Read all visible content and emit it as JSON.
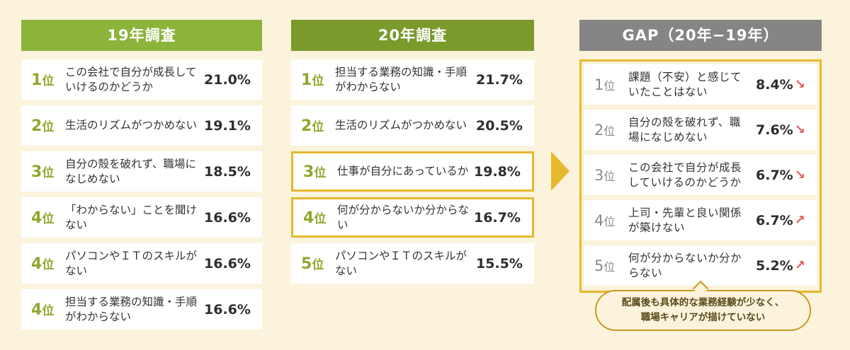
{
  "columns": {
    "y19": {
      "title": "19年調査",
      "items": [
        {
          "rank": "1",
          "suffix": "位",
          "text": "この会社で自分が成長していけるのかどうか",
          "value": "21.0%"
        },
        {
          "rank": "2",
          "suffix": "位",
          "text": "生活のリズムがつかめない",
          "value": "19.1%"
        },
        {
          "rank": "3",
          "suffix": "位",
          "text": "自分の殻を破れず、職場になじめない",
          "value": "18.5%"
        },
        {
          "rank": "4",
          "suffix": "位",
          "text": "「わからない」ことを聞けない",
          "value": "16.6%"
        },
        {
          "rank": "4",
          "suffix": "位",
          "text": "パソコンやＩＴのスキルがない",
          "value": "16.6%"
        },
        {
          "rank": "4",
          "suffix": "位",
          "text": "担当する業務の知識・手順がわからない",
          "value": "16.6%"
        }
      ]
    },
    "y20": {
      "title": "20年調査",
      "items": [
        {
          "rank": "1",
          "suffix": "位",
          "text": "担当する業務の知識・手順がわからない",
          "value": "21.7%"
        },
        {
          "rank": "2",
          "suffix": "位",
          "text": "生活のリズムがつかめない",
          "value": "20.5%"
        },
        {
          "rank": "3",
          "suffix": "位",
          "text": "仕事が自分にあっているか",
          "value": "19.8%"
        },
        {
          "rank": "4",
          "suffix": "位",
          "text": "何が分からないか分からない",
          "value": "16.7%"
        },
        {
          "rank": "5",
          "suffix": "位",
          "text": "パソコンやＩＴのスキルがない",
          "value": "15.5%"
        }
      ]
    },
    "gap": {
      "title": "GAP（20年−19年）",
      "items": [
        {
          "rank": "1",
          "suffix": "位",
          "text": "課題（不安）と感じていたことはない",
          "value": "8.4%",
          "arrow": "↘"
        },
        {
          "rank": "2",
          "suffix": "位",
          "text": "自分の殻を破れず、職場になじめない",
          "value": "7.6%",
          "arrow": "↘"
        },
        {
          "rank": "3",
          "suffix": "位",
          "text": "この会社で自分が成長していけるのかどうか",
          "value": "6.7%",
          "arrow": "↘"
        },
        {
          "rank": "4",
          "suffix": "位",
          "text": "上司・先輩と良い関係が築けない",
          "value": "6.7%",
          "arrow": "↗"
        },
        {
          "rank": "5",
          "suffix": "位",
          "text": "何が分からないか分からない",
          "value": "5.2%",
          "arrow": "↗"
        }
      ]
    }
  },
  "note": {
    "line1": "配属後も具体的な業務経験が少なく、",
    "line2": "職場キャリアが描けていない"
  },
  "colors": {
    "header_19": "#8cb33a",
    "header_20": "#7a9a2c",
    "header_gap": "#858585",
    "highlight": "#e6b92e",
    "arrow_color": "#e05a5a"
  }
}
